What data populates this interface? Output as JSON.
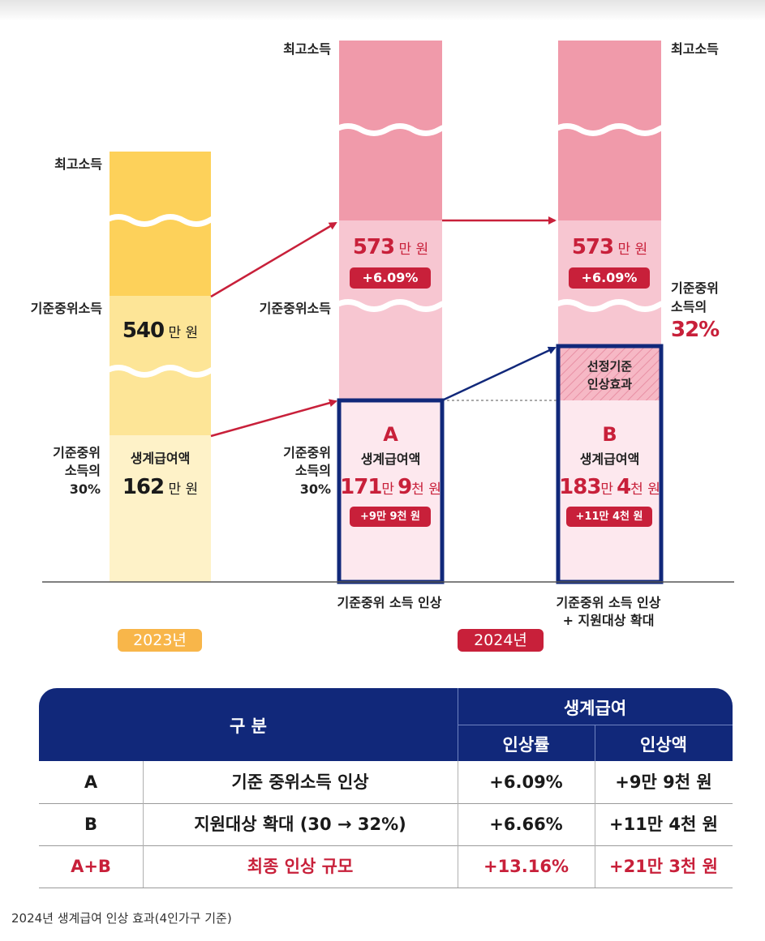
{
  "left_labels": {
    "max_income": "최고소득",
    "median_income": "기준중위소득",
    "pct_line1": "기준중위",
    "pct_line2": "소득의",
    "pct_line3": "30%"
  },
  "col_2023": {
    "median_value": "540",
    "median_unit": "만 원",
    "benefit_label": "생계급여액",
    "benefit_value": "162",
    "benefit_unit": "만 원",
    "year": "2023년"
  },
  "col_2024a": {
    "max_income": "최고소득",
    "median_value": "573",
    "median_unit": "만 원",
    "median_increase": "+6.09%",
    "median_label": "기준중위소득",
    "pct_line1": "기준중위",
    "pct_line2": "소득의",
    "pct_line3": "30%",
    "letter": "A",
    "benefit_label": "생계급여액",
    "benefit_value_main": "171",
    "benefit_unit1": "만",
    "benefit_value_sub": "9",
    "benefit_unit2": "천 원",
    "benefit_increase": "+9만 9천 원",
    "caption": "기준중위 소득 인상",
    "year": "2024년"
  },
  "col_2024b": {
    "max_income": "최고소득",
    "median_value": "573",
    "median_unit": "만 원",
    "median_increase": "+6.09%",
    "pct_line1": "기준중위",
    "pct_line2": "소득의",
    "pct_value": "32%",
    "effect_line1": "선정기준",
    "effect_line2": "인상효과",
    "letter": "B",
    "benefit_label": "생계급여액",
    "benefit_value_main": "183",
    "benefit_unit1": "만",
    "benefit_value_sub": "4",
    "benefit_unit2": "천 원",
    "benefit_increase": "+11만 4천 원",
    "caption_line1": "기준중위 소득 인상",
    "caption_line2": "+ 지원대상 확대"
  },
  "table": {
    "header_category": "구 분",
    "header_group": "생계급여",
    "header_rate": "인상률",
    "header_amount": "인상액",
    "rows": [
      {
        "key": "A",
        "desc": "기준 중위소득 인상",
        "rate": "+6.09%",
        "amount": "+9만 9천 원"
      },
      {
        "key": "B",
        "desc": "지원대상 확대 (30 → 32%)",
        "rate": "+6.66%",
        "amount": "+11만 4천 원"
      },
      {
        "key": "A+B",
        "desc": "최종 인상 규모",
        "rate": "+13.16%",
        "amount": "+21만 3천 원"
      }
    ]
  },
  "caption": "2024년 생계급여 인상 효과(4인가구 기준)",
  "colors": {
    "yellow_top": "#fdd15a",
    "yellow_mid": "#fde597",
    "yellow_low": "#fef2c8",
    "pink_top": "#f09aaa",
    "pink_mid": "#f7c6d1",
    "pink_low": "#fde8ee",
    "red": "#c8203a",
    "navy": "#11287a",
    "badge_2023": "#f8b64a"
  }
}
